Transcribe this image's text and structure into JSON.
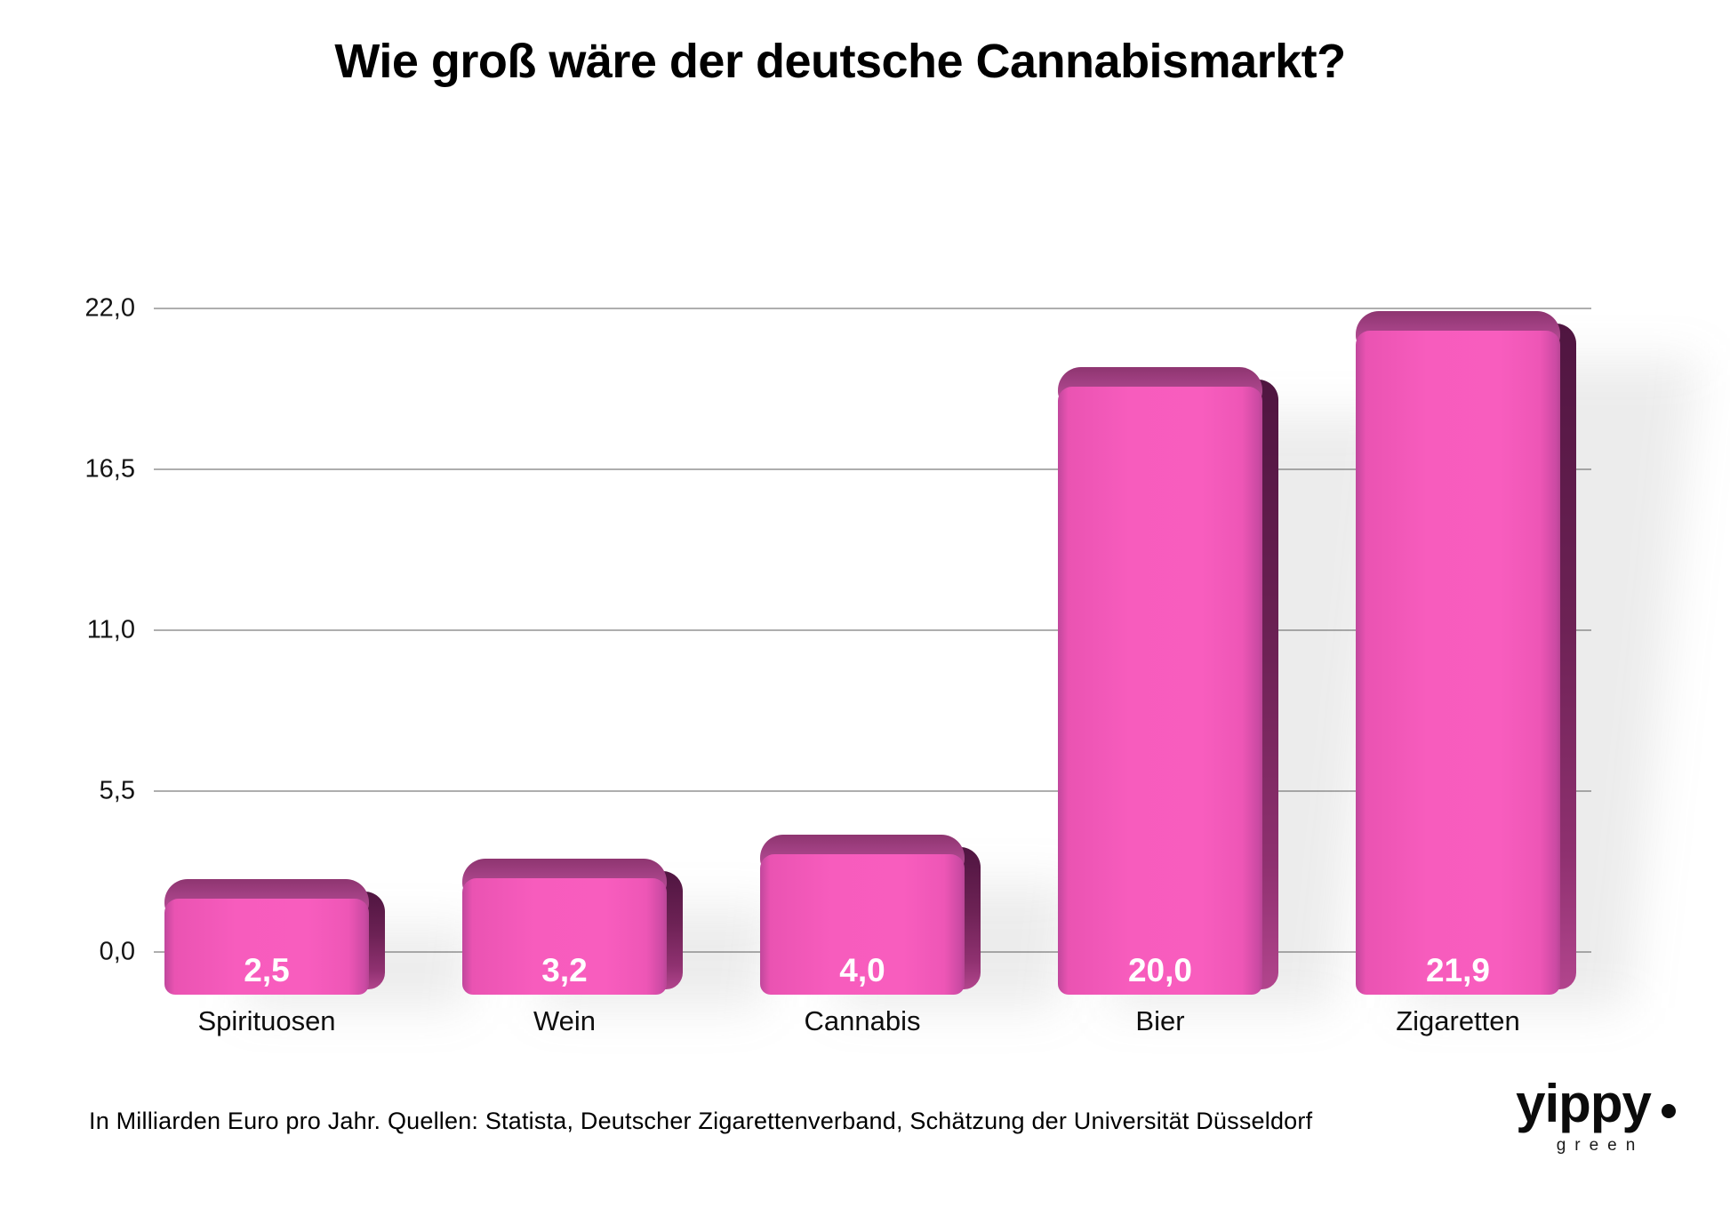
{
  "chart_data": {
    "type": "bar",
    "title": "Wie groß wäre der deutsche Cannabismarkt?",
    "categories": [
      "Spirituosen",
      "Wein",
      "Cannabis",
      "Bier",
      "Zigaretten"
    ],
    "values": [
      2.5,
      3.2,
      4.0,
      20.0,
      21.9
    ],
    "value_labels": [
      "2,5",
      "3,2",
      "4,0",
      "20,0",
      "21,9"
    ],
    "y_ticks": [
      {
        "value": 22.0,
        "label": "22,0"
      },
      {
        "value": 16.5,
        "label": "16,5"
      },
      {
        "value": 11.0,
        "label": "11,0"
      },
      {
        "value": 5.5,
        "label": "5,5"
      },
      {
        "value": 0.0,
        "label": "0,0"
      }
    ],
    "ylim": [
      0,
      22
    ],
    "grid": true,
    "legend": "none",
    "xlabel": "",
    "ylabel": "",
    "unit_note": "Milliarden Euro pro Jahr",
    "colors": {
      "bar_front": "#f75cbd",
      "bar_top": "#a84489",
      "bar_side": "#6d2255",
      "value_label": "#ffffff",
      "gridline": "#aeaeae",
      "text": "#000000"
    }
  },
  "footer": {
    "note": "In Milliarden Euro pro Jahr. Quellen: Statista, Deutscher Zigarettenverband, Schätzung der Universität Düsseldorf"
  },
  "logo": {
    "wordmark": "yippy",
    "subtext": "green"
  }
}
